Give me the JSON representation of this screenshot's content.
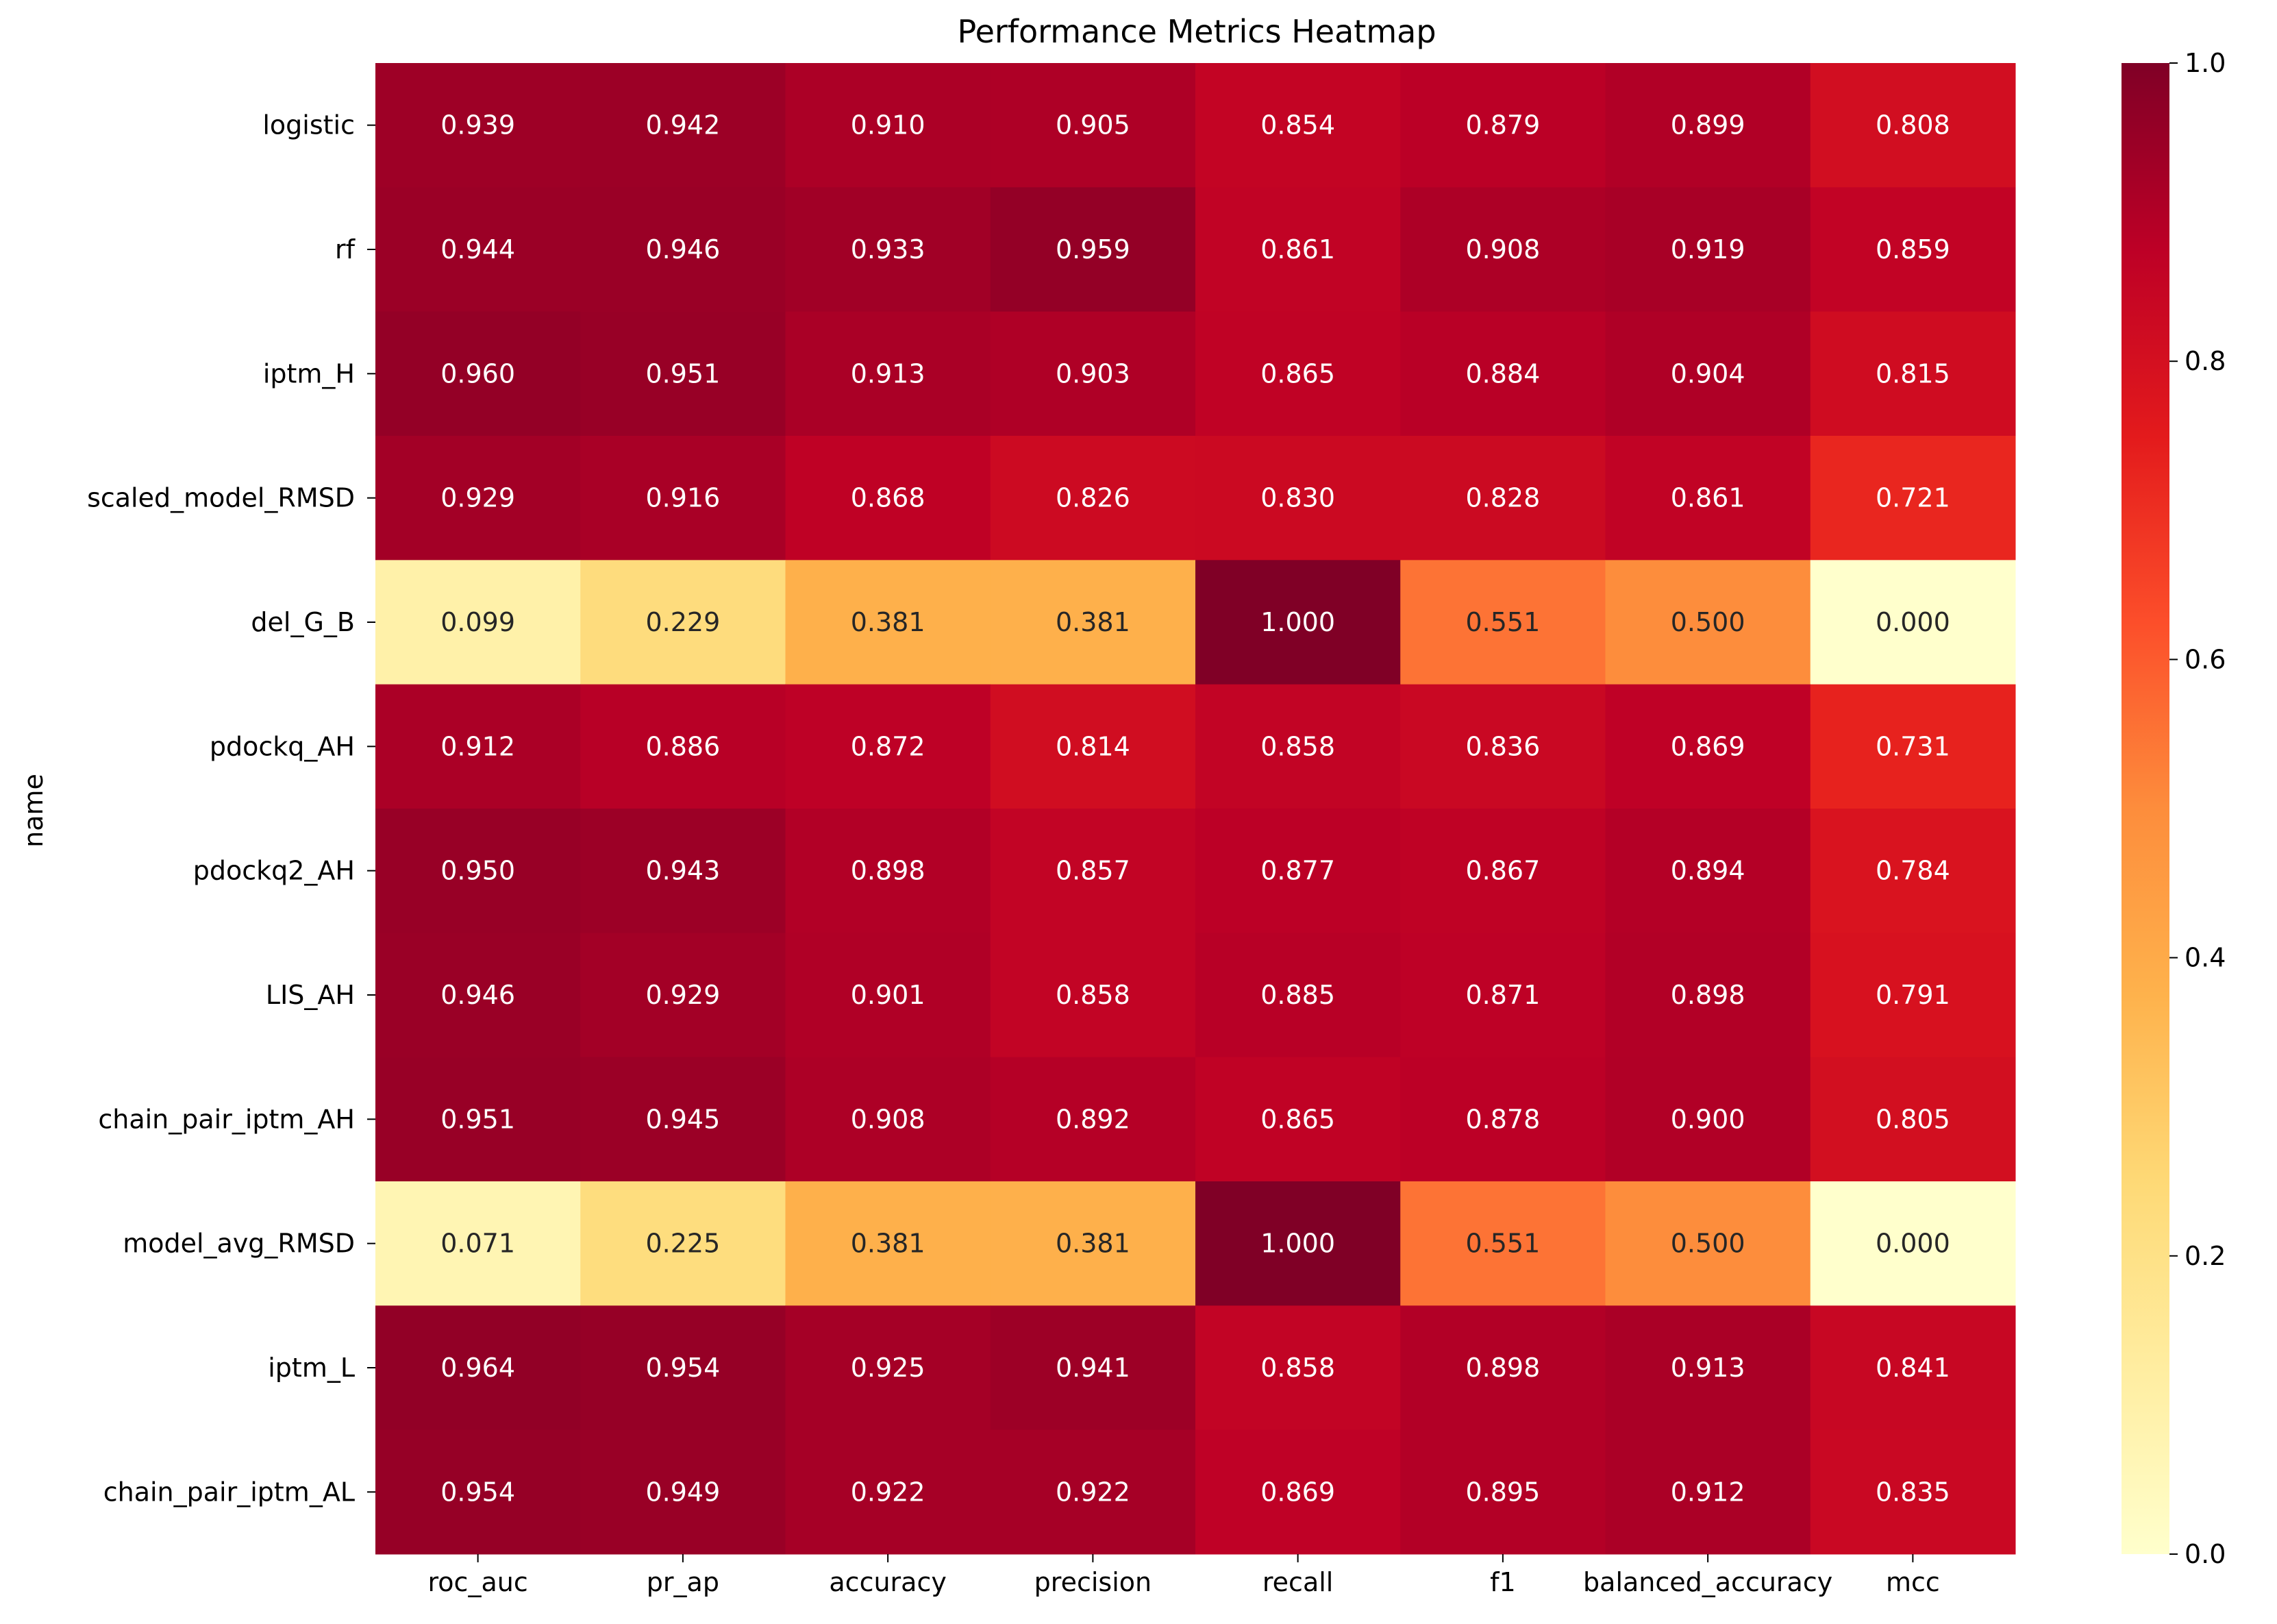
{
  "chart_data": {
    "type": "heatmap",
    "title": "Performance Metrics Heatmap",
    "xlabel": "",
    "ylabel": "name",
    "columns": [
      "roc_auc",
      "pr_ap",
      "accuracy",
      "precision",
      "recall",
      "f1",
      "balanced_accuracy",
      "mcc"
    ],
    "rows": [
      "logistic",
      "rf",
      "iptm_H",
      "scaled_model_RMSD",
      "del_G_B",
      "pdockq_AH",
      "pdockq2_AH",
      "LIS_AH",
      "chain_pair_iptm_AH",
      "model_avg_RMSD",
      "iptm_L",
      "chain_pair_iptm_AL"
    ],
    "values": [
      [
        0.939,
        0.942,
        0.91,
        0.905,
        0.854,
        0.879,
        0.899,
        0.808
      ],
      [
        0.944,
        0.946,
        0.933,
        0.959,
        0.861,
        0.908,
        0.919,
        0.859
      ],
      [
        0.96,
        0.951,
        0.913,
        0.903,
        0.865,
        0.884,
        0.904,
        0.815
      ],
      [
        0.929,
        0.916,
        0.868,
        0.826,
        0.83,
        0.828,
        0.861,
        0.721
      ],
      [
        0.099,
        0.229,
        0.381,
        0.381,
        1.0,
        0.551,
        0.5,
        0.0
      ],
      [
        0.912,
        0.886,
        0.872,
        0.814,
        0.858,
        0.836,
        0.869,
        0.731
      ],
      [
        0.95,
        0.943,
        0.898,
        0.857,
        0.877,
        0.867,
        0.894,
        0.784
      ],
      [
        0.946,
        0.929,
        0.901,
        0.858,
        0.885,
        0.871,
        0.898,
        0.791
      ],
      [
        0.951,
        0.945,
        0.908,
        0.892,
        0.865,
        0.878,
        0.9,
        0.805
      ],
      [
        0.071,
        0.225,
        0.381,
        0.381,
        1.0,
        0.551,
        0.5,
        0.0
      ],
      [
        0.964,
        0.954,
        0.925,
        0.941,
        0.858,
        0.898,
        0.913,
        0.841
      ],
      [
        0.954,
        0.949,
        0.922,
        0.922,
        0.869,
        0.895,
        0.912,
        0.835
      ]
    ],
    "value_format": "3 decimals",
    "colormap": "YlOrRd",
    "vmin": 0.0,
    "vmax": 1.0,
    "colorbar_ticks": [
      "0.0",
      "0.2",
      "0.4",
      "0.6",
      "0.8",
      "1.0"
    ],
    "colorbar_tick_values": [
      0.0,
      0.2,
      0.4,
      0.6,
      0.8,
      1.0
    ],
    "grid": false,
    "legend": "colorbar-right"
  }
}
